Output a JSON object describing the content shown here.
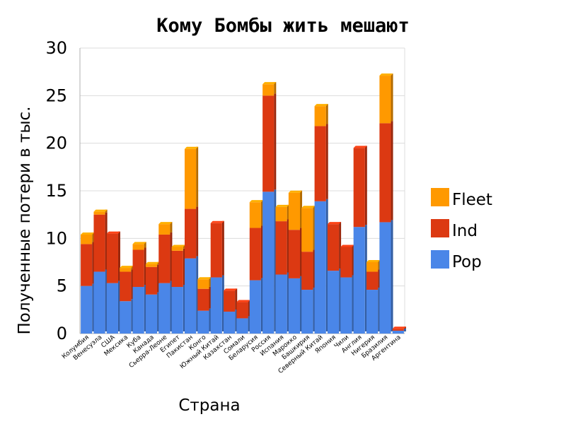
{
  "chart_data": {
    "type": "bar",
    "stacked": true,
    "title": "Кому Бомбы жить мешают",
    "xlabel": "Страна",
    "ylabel": "Полученные потери в тыс.",
    "ylim": [
      0,
      30
    ],
    "yticks": [
      0,
      5,
      10,
      15,
      20,
      25,
      30
    ],
    "grid": true,
    "legend_position": "right",
    "categories": [
      "Колумбия",
      "Венесуэла",
      "США",
      "Мексика",
      "Куба",
      "Канада",
      "Сьерра-Леоне",
      "Египет",
      "Пакистан",
      "Конго",
      "Южный Китай",
      "Казахстан",
      "Сомали",
      "Беларусия",
      "Россия",
      "Испания",
      "Марокко",
      "Башкирия",
      "Северный Китай",
      "Япония",
      "Чили",
      "Англия",
      "Нигерия",
      "Бразилия",
      "Аргентина"
    ],
    "series": [
      {
        "name": "Pop",
        "color": "#4a86e8",
        "values": [
          5.0,
          6.5,
          5.3,
          3.4,
          4.9,
          4.1,
          5.3,
          4.9,
          7.9,
          2.4,
          5.9,
          2.3,
          1.6,
          5.6,
          14.9,
          6.2,
          5.8,
          4.6,
          13.9,
          6.6,
          5.9,
          11.2,
          4.6,
          11.7,
          0.3
        ]
      },
      {
        "name": "Ind",
        "color": "#dc3912",
        "values": [
          4.4,
          6.0,
          5.2,
          3.1,
          3.9,
          2.9,
          5.1,
          3.8,
          5.2,
          2.3,
          5.7,
          2.2,
          1.7,
          5.5,
          10.1,
          5.6,
          5.1,
          4.0,
          7.9,
          4.9,
          3.2,
          8.3,
          1.9,
          10.4,
          0.2
        ]
      },
      {
        "name": "Fleet",
        "color": "#ff9900",
        "values": [
          1.0,
          0.3,
          0.0,
          0.4,
          0.6,
          0.3,
          1.1,
          0.4,
          6.3,
          1.0,
          0.0,
          0.0,
          0.0,
          2.7,
          1.2,
          1.5,
          3.9,
          4.6,
          2.1,
          0.0,
          0.0,
          0.0,
          1.0,
          5.0,
          0.0
        ]
      }
    ]
  }
}
